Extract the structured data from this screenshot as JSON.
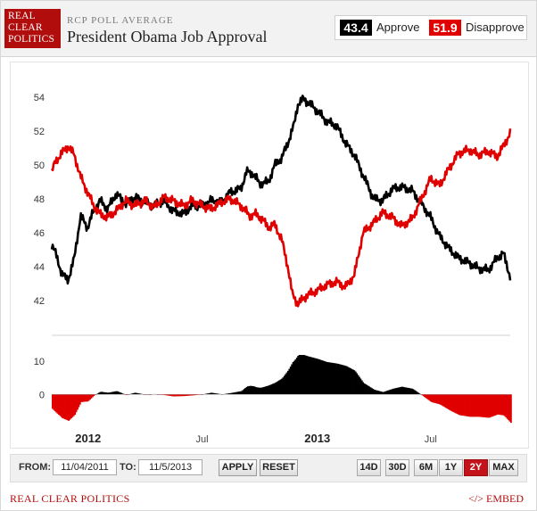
{
  "header": {
    "logo_lines": [
      "REAL",
      "CLEAR",
      "POLITICS"
    ],
    "kicker": "RCP POLL AVERAGE",
    "title": "President Obama Job Approval"
  },
  "legend": {
    "approve_value": "43.4",
    "approve_label": "Approve",
    "disapprove_value": "51.9",
    "disapprove_label": "Disapprove"
  },
  "colors": {
    "approve": "#000000",
    "disapprove": "#e00000",
    "brand": "#b10d0d",
    "active_range": "#c4121a"
  },
  "controls": {
    "from_label": "FROM:",
    "from_value": "11/04/2011",
    "to_label": "TO:",
    "to_value": "11/5/2013",
    "apply_label": "APPLY",
    "reset_label": "RESET",
    "ranges": [
      "14D",
      "30D",
      "6M",
      "1Y",
      "2Y",
      "MAX"
    ],
    "active_range": "2Y"
  },
  "footer": {
    "left": "REAL CLEAR POLITICS",
    "right": "</> EMBED"
  },
  "chart_data": {
    "type": "line",
    "x_ticks": [
      {
        "label": "2012",
        "date": "2012-01-01",
        "bold": true
      },
      {
        "label": "Jul",
        "date": "2012-07-01",
        "bold": false
      },
      {
        "label": "2013",
        "date": "2013-01-01",
        "bold": true
      },
      {
        "label": "Jul",
        "date": "2013-07-01",
        "bold": false
      }
    ],
    "xlim": [
      "2011-11-04",
      "2013-11-05"
    ],
    "ylim": [
      41,
      55
    ],
    "y_ticks": [
      42,
      44,
      46,
      48,
      50,
      52,
      54
    ],
    "spread_ylim": [
      -9,
      15
    ],
    "spread_ticks": [
      0,
      10
    ],
    "grid": false,
    "series": [
      {
        "name": "Approve",
        "color": "#000000",
        "points": [
          [
            "2011-11-04",
            45.3
          ],
          [
            "2011-11-10",
            44.8
          ],
          [
            "2011-11-20",
            43.6
          ],
          [
            "2011-11-30",
            43.2
          ],
          [
            "2011-12-10",
            44.5
          ],
          [
            "2011-12-20",
            47.0
          ],
          [
            "2011-12-31",
            46.3
          ],
          [
            "2012-01-10",
            47.3
          ],
          [
            "2012-01-20",
            47.9
          ],
          [
            "2012-02-01",
            47.4
          ],
          [
            "2012-02-15",
            48.3
          ],
          [
            "2012-03-01",
            47.7
          ],
          [
            "2012-03-15",
            48.1
          ],
          [
            "2012-04-01",
            47.8
          ],
          [
            "2012-04-15",
            47.6
          ],
          [
            "2012-05-01",
            47.9
          ],
          [
            "2012-05-15",
            47.3
          ],
          [
            "2012-06-01",
            47.1
          ],
          [
            "2012-06-15",
            47.6
          ],
          [
            "2012-07-01",
            47.6
          ],
          [
            "2012-07-15",
            47.9
          ],
          [
            "2012-08-01",
            47.8
          ],
          [
            "2012-08-15",
            48.4
          ],
          [
            "2012-09-01",
            48.6
          ],
          [
            "2012-09-10",
            49.6
          ],
          [
            "2012-09-20",
            49.5
          ],
          [
            "2012-10-01",
            48.9
          ],
          [
            "2012-10-15",
            49.0
          ],
          [
            "2012-10-25",
            50.0
          ],
          [
            "2012-11-05",
            50.4
          ],
          [
            "2012-11-15",
            51.3
          ],
          [
            "2012-11-25",
            52.4
          ],
          [
            "2012-12-01",
            53.6
          ],
          [
            "2012-12-10",
            53.9
          ],
          [
            "2012-12-20",
            53.6
          ],
          [
            "2013-01-01",
            53.2
          ],
          [
            "2013-01-15",
            52.6
          ],
          [
            "2013-02-01",
            52.3
          ],
          [
            "2013-02-15",
            51.3
          ],
          [
            "2013-03-01",
            50.6
          ],
          [
            "2013-03-15",
            49.4
          ],
          [
            "2013-04-01",
            48.0
          ],
          [
            "2013-04-15",
            47.9
          ],
          [
            "2013-05-01",
            48.6
          ],
          [
            "2013-05-15",
            48.7
          ],
          [
            "2013-06-01",
            48.5
          ],
          [
            "2013-06-15",
            47.8
          ],
          [
            "2013-07-01",
            46.9
          ],
          [
            "2013-07-15",
            45.8
          ],
          [
            "2013-08-01",
            45.0
          ],
          [
            "2013-08-15",
            44.5
          ],
          [
            "2013-09-01",
            44.2
          ],
          [
            "2013-09-15",
            43.9
          ],
          [
            "2013-10-01",
            43.8
          ],
          [
            "2013-10-15",
            44.5
          ],
          [
            "2013-10-25",
            44.8
          ],
          [
            "2013-11-05",
            43.4
          ]
        ]
      },
      {
        "name": "Disapprove",
        "color": "#e00000",
        "points": [
          [
            "2011-11-04",
            49.6
          ],
          [
            "2011-11-10",
            50.2
          ],
          [
            "2011-11-20",
            50.7
          ],
          [
            "2011-11-30",
            51.1
          ],
          [
            "2011-12-10",
            50.6
          ],
          [
            "2011-12-20",
            49.3
          ],
          [
            "2011-12-31",
            48.4
          ],
          [
            "2012-01-10",
            47.6
          ],
          [
            "2012-01-20",
            47.1
          ],
          [
            "2012-02-01",
            46.9
          ],
          [
            "2012-02-15",
            47.3
          ],
          [
            "2012-03-01",
            47.9
          ],
          [
            "2012-03-15",
            47.6
          ],
          [
            "2012-04-01",
            47.9
          ],
          [
            "2012-04-15",
            47.5
          ],
          [
            "2012-05-01",
            48.1
          ],
          [
            "2012-05-15",
            47.9
          ],
          [
            "2012-06-01",
            47.6
          ],
          [
            "2012-06-15",
            47.9
          ],
          [
            "2012-07-01",
            47.6
          ],
          [
            "2012-07-15",
            47.4
          ],
          [
            "2012-08-01",
            47.8
          ],
          [
            "2012-08-15",
            48.0
          ],
          [
            "2012-09-01",
            47.6
          ],
          [
            "2012-09-15",
            47.0
          ],
          [
            "2012-09-25",
            47.1
          ],
          [
            "2012-10-05",
            46.8
          ],
          [
            "2012-10-15",
            46.3
          ],
          [
            "2012-10-25",
            46.5
          ],
          [
            "2012-11-05",
            45.6
          ],
          [
            "2012-11-15",
            44.0
          ],
          [
            "2012-11-22",
            42.4
          ],
          [
            "2012-12-01",
            41.8
          ],
          [
            "2012-12-15",
            42.3
          ],
          [
            "2013-01-01",
            42.6
          ],
          [
            "2013-01-15",
            42.9
          ],
          [
            "2013-02-01",
            43.1
          ],
          [
            "2013-02-15",
            42.8
          ],
          [
            "2013-03-01",
            43.5
          ],
          [
            "2013-03-15",
            46.0
          ],
          [
            "2013-04-01",
            46.6
          ],
          [
            "2013-04-15",
            47.2
          ],
          [
            "2013-05-01",
            46.9
          ],
          [
            "2013-05-15",
            46.4
          ],
          [
            "2013-06-01",
            46.8
          ],
          [
            "2013-06-15",
            47.9
          ],
          [
            "2013-07-01",
            49.2
          ],
          [
            "2013-07-15",
            48.8
          ],
          [
            "2013-08-01",
            49.9
          ],
          [
            "2013-08-15",
            50.7
          ],
          [
            "2013-09-01",
            50.9
          ],
          [
            "2013-09-15",
            50.6
          ],
          [
            "2013-10-01",
            50.8
          ],
          [
            "2013-10-15",
            50.5
          ],
          [
            "2013-10-25",
            51.1
          ],
          [
            "2013-11-05",
            51.9
          ]
        ]
      }
    ]
  }
}
